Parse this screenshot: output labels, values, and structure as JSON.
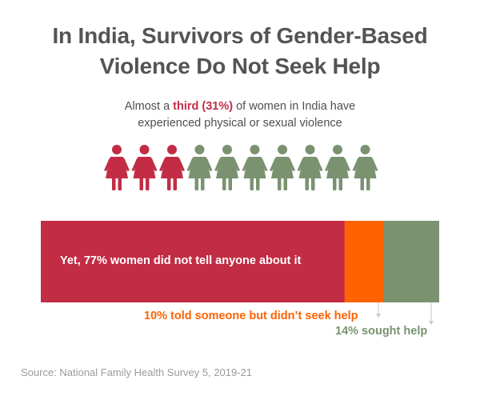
{
  "title_line1": "In India, Survivors of Gender-Based",
  "title_line2": "Violence Do Not Seek Help",
  "subtitle": {
    "pre": "Almost a ",
    "highlight": "third (31%)",
    "post_line1": " of women in India have",
    "line2": "experienced physical or sexual violence"
  },
  "pictogram": {
    "total": 10,
    "highlighted": 3,
    "icon": "woman-icon",
    "highlight_color": "#c22d45",
    "base_color": "#7a9270"
  },
  "chart_data": {
    "type": "bar",
    "orientation": "horizontal-stacked",
    "categories": [
      "Yet, 77% women did not tell anyone about it",
      "10% told someone but didn't seek help",
      "14% sought help"
    ],
    "values": [
      77,
      10,
      14
    ],
    "colors": [
      "#c22d45",
      "#ff6200",
      "#7a9270"
    ],
    "title": "In India, Survivors of Gender-Based Violence Do Not Seek Help"
  },
  "labels": {
    "seg1": "Yet, 77% women did not tell anyone about it",
    "seg2": "10% told someone but didn’t seek help",
    "seg3": "14% sought help"
  },
  "source": "Source: National Family Health Survey 5, 2019-21"
}
